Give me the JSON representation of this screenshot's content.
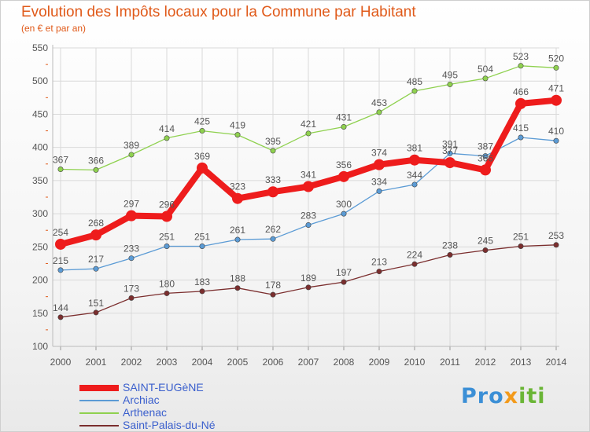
{
  "header": {
    "title": "Evolution des Impôts locaux pour la Commune par Habitant",
    "subtitle": "(en € et par an)"
  },
  "brand": {
    "logo_parts": [
      "Pro",
      "x",
      "iti"
    ]
  },
  "colors": {
    "title": "#e05a1a",
    "axis_text": "#555555",
    "grid": "#d9d9d9",
    "legend_text": "#3a5fcd",
    "logo_blue": "#3b8fd6",
    "logo_orange": "#f39a1b",
    "logo_green": "#6ab536"
  },
  "chart_data": {
    "type": "line",
    "title": "Evolution des Impôts locaux pour la Commune par Habitant",
    "subtitle": "(en € et par an)",
    "xlabel": "",
    "ylabel": "",
    "x": [
      "2000",
      "2001",
      "2002",
      "2003",
      "2004",
      "2005",
      "2006",
      "2007",
      "2008",
      "2009",
      "2010",
      "2011",
      "2012",
      "2013",
      "2014"
    ],
    "ylim": [
      100,
      550
    ],
    "yticks": [
      100,
      150,
      200,
      250,
      300,
      350,
      400,
      450,
      500,
      550
    ],
    "grid": true,
    "legend_position": "bottom-left",
    "series": [
      {
        "name": "SAINT-EUGèNE",
        "color": "#ee1c1c",
        "emphasis": true,
        "values": [
          254,
          268,
          297,
          296,
          369,
          323,
          333,
          341,
          356,
          374,
          381,
          377,
          366,
          466,
          471
        ],
        "labels": [
          "254",
          "268",
          "297",
          "296",
          "369",
          "323",
          "333",
          "341",
          "356",
          "374",
          "381",
          "377",
          "366",
          "466",
          "471"
        ]
      },
      {
        "name": "Archiac",
        "color": "#5b9bd5",
        "emphasis": false,
        "values": [
          215,
          217,
          233,
          251,
          251,
          261,
          262,
          283,
          300,
          334,
          344,
          391,
          387,
          415,
          410
        ],
        "labels": [
          "215",
          "217",
          "233",
          "251",
          "251",
          "261",
          "262",
          "283",
          "300",
          "334",
          "344",
          "391",
          "387",
          "415",
          "410"
        ]
      },
      {
        "name": "Arthenac",
        "color": "#8fd14f",
        "emphasis": false,
        "values": [
          367,
          366,
          389,
          414,
          425,
          419,
          395,
          421,
          431,
          453,
          485,
          495,
          504,
          523,
          520
        ],
        "labels": [
          "367",
          "366",
          "389",
          "414",
          "425",
          "419",
          "395",
          "421",
          "431",
          "453",
          "485",
          "495",
          "504",
          "523",
          "520"
        ]
      },
      {
        "name": "Saint-Palais-du-Né",
        "color": "#7b2e2e",
        "emphasis": false,
        "values": [
          144,
          151,
          173,
          180,
          183,
          188,
          178,
          189,
          197,
          213,
          224,
          238,
          245,
          251,
          253
        ],
        "labels": [
          "144",
          "151",
          "173",
          "180",
          "183",
          "188",
          "178",
          "189",
          "197",
          "213",
          "224",
          "238",
          "245",
          "251",
          "253"
        ]
      }
    ]
  }
}
